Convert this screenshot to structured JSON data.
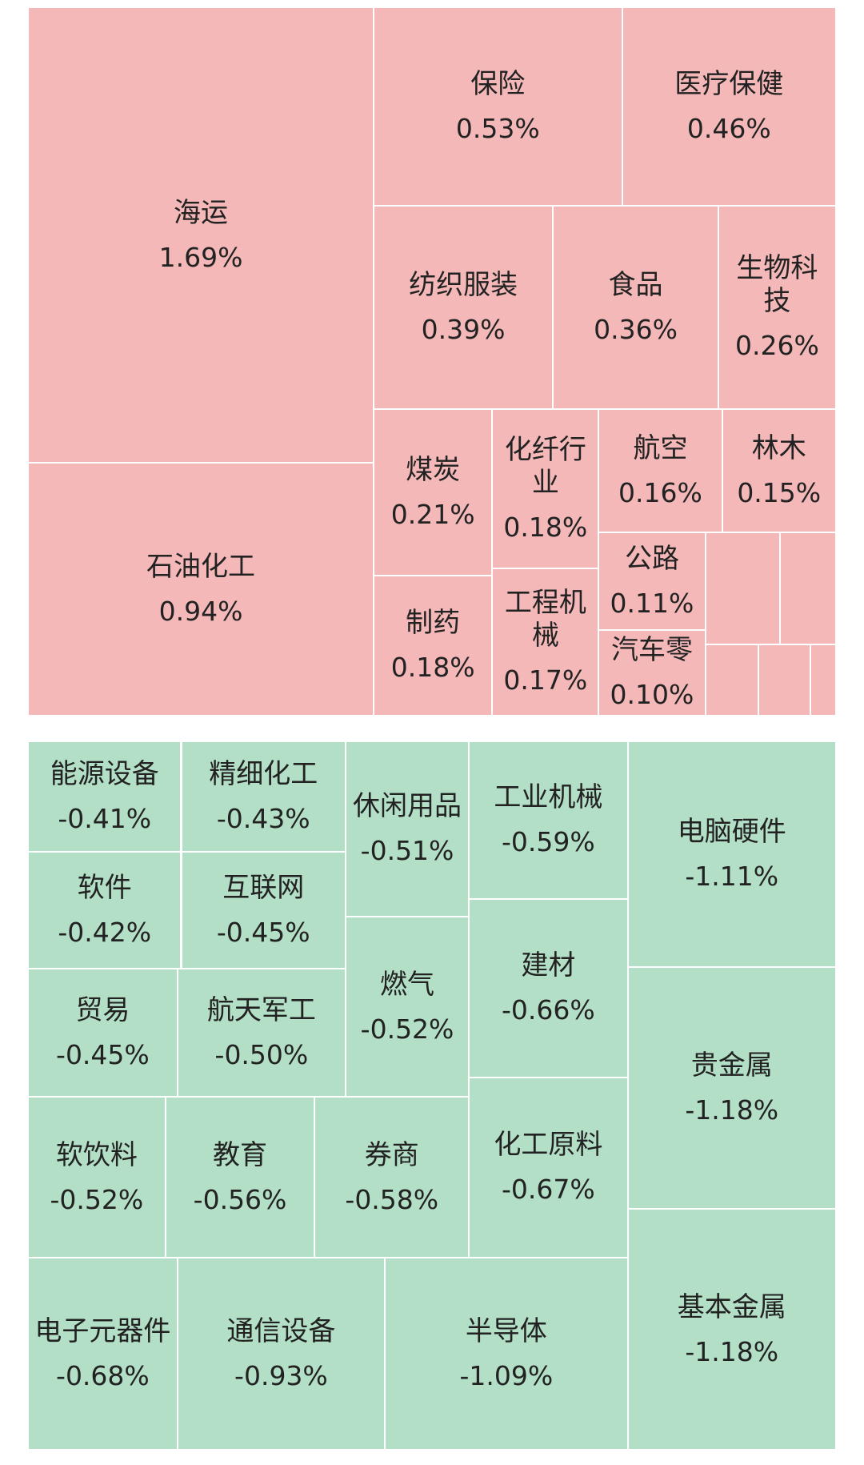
{
  "chart_data": {
    "type": "treemap",
    "series": [
      {
        "color": "#f4b8b8",
        "categories": [
          "海运",
          "石油化工",
          "保险",
          "医疗保健",
          "纺织服装",
          "食品",
          "生物科技",
          "煤炭",
          "制药",
          "化纤行业",
          "工程机械",
          "航空",
          "林木",
          "公路",
          "汽车零"
        ],
        "values": [
          1.69,
          0.94,
          0.53,
          0.46,
          0.39,
          0.36,
          0.26,
          0.21,
          0.18,
          0.18,
          0.17,
          0.16,
          0.15,
          0.11,
          0.1
        ],
        "value_labels": [
          "1.69%",
          "0.94%",
          "0.53%",
          "0.46%",
          "0.39%",
          "0.36%",
          "0.26%",
          "0.21%",
          "0.18%",
          "0.18%",
          "0.17%",
          "0.16%",
          "0.15%",
          "0.11%",
          "0.10%"
        ]
      },
      {
        "color": "#b3dfc6",
        "categories": [
          "能源设备",
          "精细化工",
          "休闲用品",
          "工业机械",
          "电脑硬件",
          "软件",
          "互联网",
          "燃气",
          "建材",
          "贵金属",
          "贸易",
          "航天军工",
          "软饮料",
          "教育",
          "券商",
          "化工原料",
          "基本金属",
          "电子元器件",
          "通信设备",
          "半导体"
        ],
        "values": [
          -0.41,
          -0.43,
          -0.51,
          -0.59,
          -1.11,
          -0.42,
          -0.45,
          -0.52,
          -0.66,
          -1.18,
          -0.45,
          -0.5,
          -0.52,
          -0.56,
          -0.58,
          -0.67,
          -1.18,
          -0.68,
          -0.93,
          -1.09
        ],
        "value_labels": [
          "-0.41%",
          "-0.43%",
          "-0.51%",
          "-0.59%",
          "-1.11%",
          "-0.42%",
          "-0.45%",
          "-0.52%",
          "-0.66%",
          "-1.18%",
          "-0.45%",
          "-0.50%",
          "-0.52%",
          "-0.56%",
          "-0.58%",
          "-0.67%",
          "-1.18%",
          "-0.68%",
          "-0.93%",
          "-1.09%"
        ]
      }
    ]
  }
}
